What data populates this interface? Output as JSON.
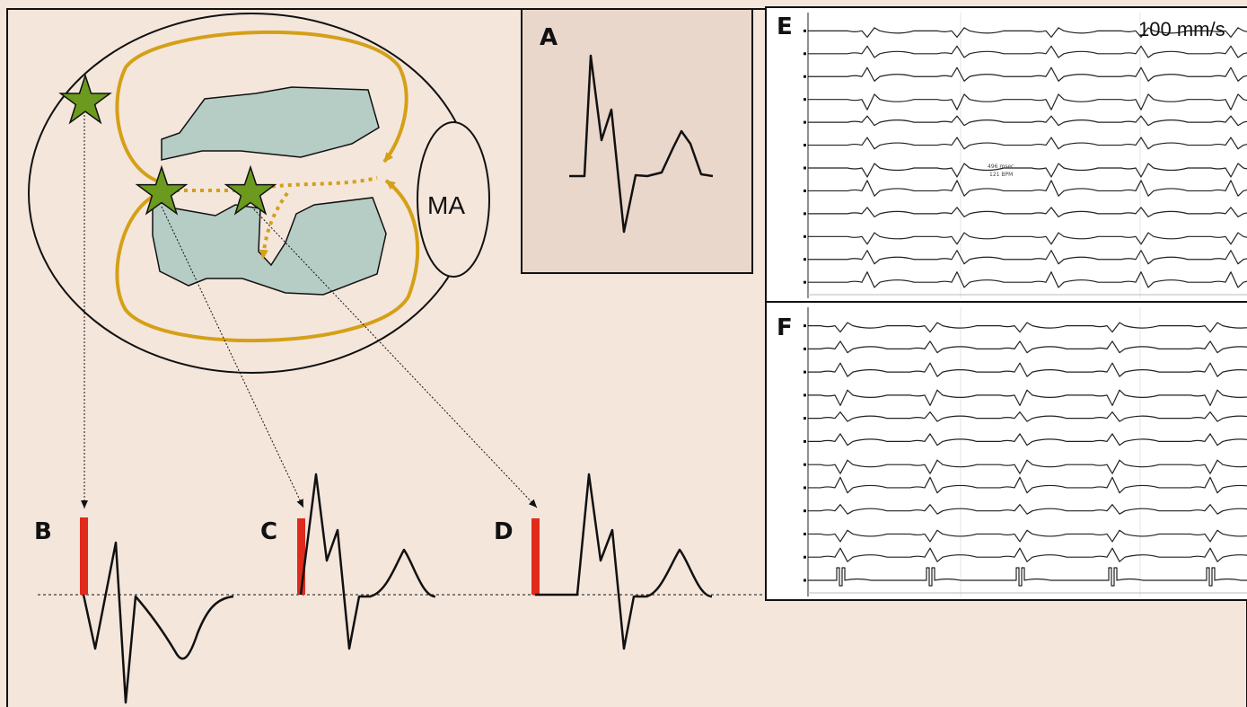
{
  "panels": {
    "A": "A",
    "B": "B",
    "C": "C",
    "D": "D",
    "E": "E",
    "F": "F"
  },
  "schematic": {
    "valve_label": "MA"
  },
  "recording": {
    "speed_label": "100 mm/s",
    "annotation_line1": "496 msec",
    "annotation_line2": "121 BPM"
  },
  "colors": {
    "background": "#f5e6dc",
    "panel_a_fill": "#ead7cb",
    "scar": "#b5cdc4",
    "circuit": "#d4a017",
    "star": "#6b9a1e",
    "pacing_spike": "#e02a1c",
    "trace": "#111111"
  },
  "icons": {
    "site": "star-icon"
  }
}
